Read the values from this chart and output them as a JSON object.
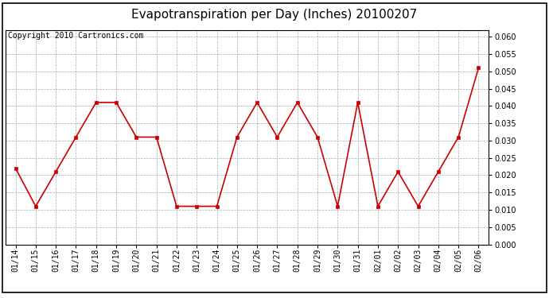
{
  "title": "Evapotranspiration per Day (Inches) 20100207",
  "copyright_text": "Copyright 2010 Cartronics.com",
  "dates": [
    "01/14",
    "01/15",
    "01/16",
    "01/17",
    "01/18",
    "01/19",
    "01/20",
    "01/21",
    "01/22",
    "01/23",
    "01/24",
    "01/25",
    "01/26",
    "01/27",
    "01/28",
    "01/29",
    "01/30",
    "01/31",
    "02/01",
    "02/02",
    "02/03",
    "02/04",
    "02/05",
    "02/06"
  ],
  "values": [
    0.022,
    0.011,
    0.021,
    0.031,
    0.041,
    0.041,
    0.031,
    0.031,
    0.011,
    0.011,
    0.011,
    0.031,
    0.041,
    0.031,
    0.041,
    0.031,
    0.011,
    0.041,
    0.011,
    0.021,
    0.011,
    0.021,
    0.031,
    0.051
  ],
  "line_color": "#cc0000",
  "marker": "s",
  "marker_size": 3,
  "ylim": [
    0.0,
    0.062
  ],
  "yticks": [
    0.0,
    0.005,
    0.01,
    0.015,
    0.02,
    0.025,
    0.03,
    0.035,
    0.04,
    0.045,
    0.05,
    0.055,
    0.06
  ],
  "grid_color": "#aaaaaa",
  "background_color": "#ffffff",
  "title_fontsize": 11,
  "copyright_fontsize": 7,
  "tick_fontsize": 7,
  "ytick_fontsize": 7
}
